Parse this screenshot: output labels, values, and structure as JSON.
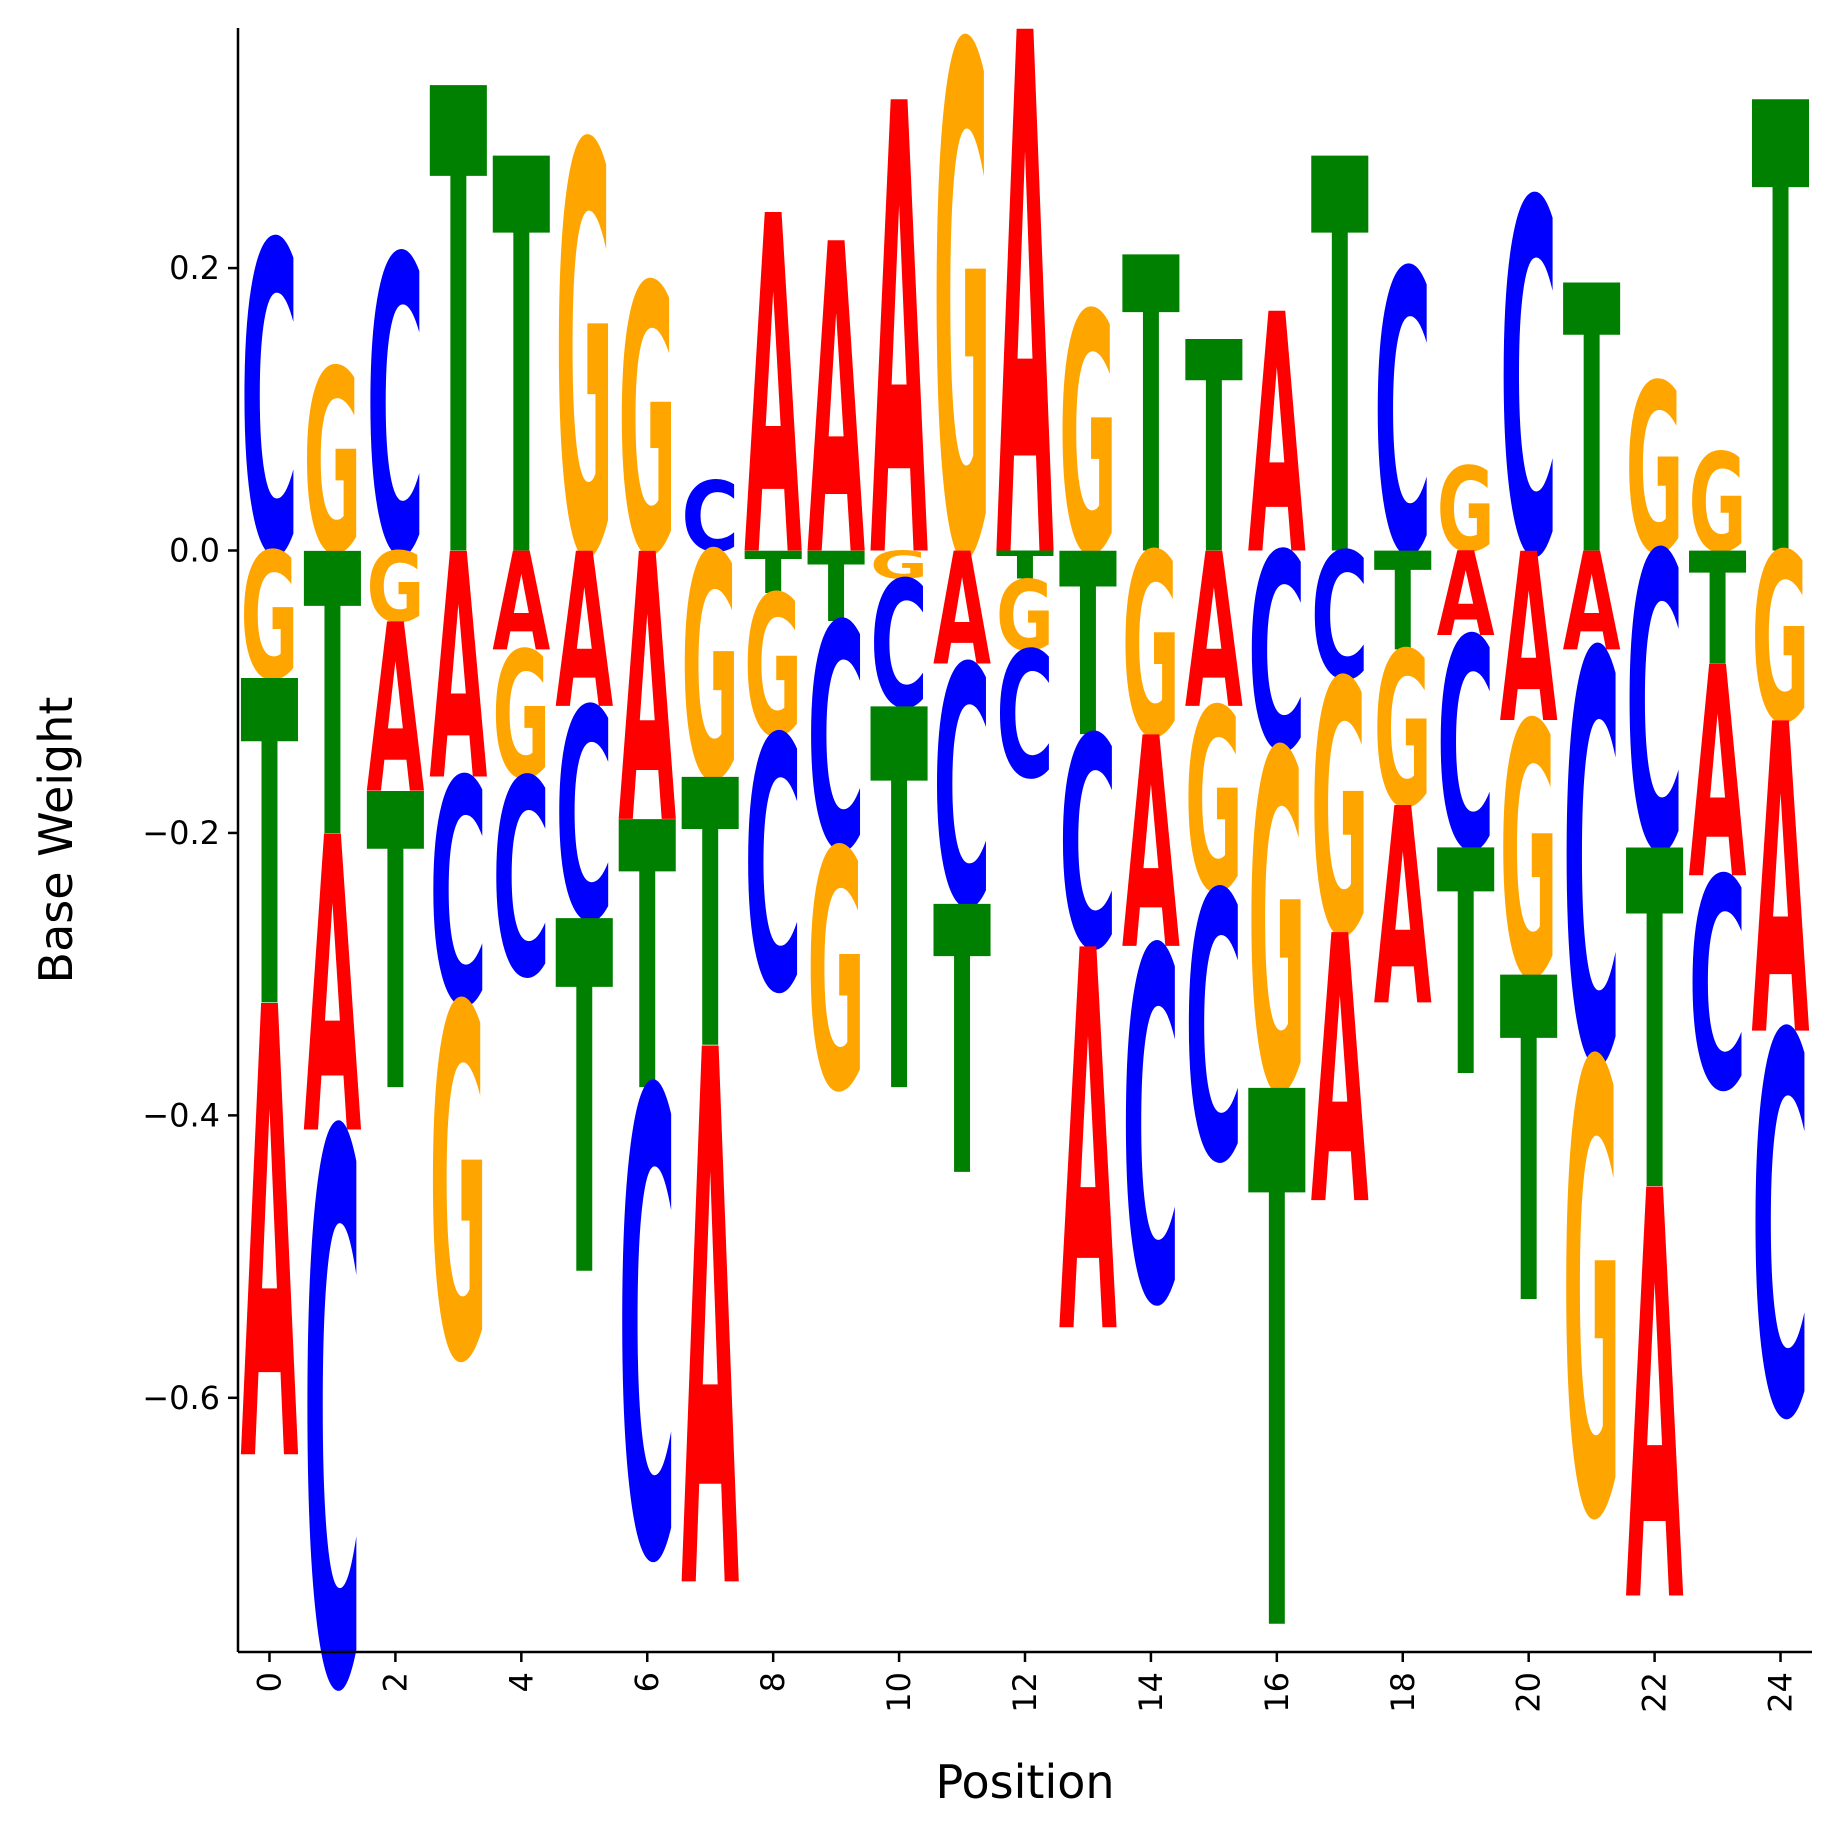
{
  "chart_data": {
    "type": "sequence-logo",
    "xlabel": "Position",
    "ylabel": "Base Weight",
    "xlim": [
      -0.5,
      24.5
    ],
    "ylim": [
      -0.78,
      0.37
    ],
    "x_ticks": [
      0,
      2,
      4,
      6,
      8,
      10,
      12,
      14,
      16,
      18,
      20,
      22,
      24
    ],
    "y_ticks": [
      -0.6,
      -0.4,
      -0.2,
      0.0,
      0.2
    ],
    "y_tick_labels": [
      "−0.6",
      "−0.4",
      "−0.2",
      "0.0",
      "0.2"
    ],
    "grid": false,
    "colors": {
      "A": "#ff0000",
      "C": "#0000ff",
      "G": "#ffa500",
      "T": "#008000"
    },
    "weights": [
      {
        "position": 0,
        "A": -0.32,
        "C": 0.22,
        "G": -0.09,
        "T": -0.23
      },
      {
        "position": 1,
        "A": -0.21,
        "C": -0.39,
        "G": 0.13,
        "T": -0.2
      },
      {
        "position": 2,
        "A": -0.12,
        "C": 0.21,
        "G": -0.05,
        "T": -0.21
      },
      {
        "position": 3,
        "A": -0.16,
        "C": -0.16,
        "G": -0.25,
        "T": 0.33
      },
      {
        "position": 4,
        "A": -0.07,
        "C": -0.14,
        "G": -0.09,
        "T": 0.28
      },
      {
        "position": 5,
        "A": -0.11,
        "C": -0.15,
        "G": 0.29,
        "T": -0.25
      },
      {
        "position": 6,
        "A": -0.19,
        "C": -0.33,
        "G": 0.19,
        "T": -0.19
      },
      {
        "position": 7,
        "A": -0.38,
        "C": 0.05,
        "G": -0.16,
        "T": -0.19
      },
      {
        "position": 8,
        "A": 0.24,
        "C": -0.18,
        "G": -0.1,
        "T": -0.03
      },
      {
        "position": 9,
        "A": 0.22,
        "C": -0.16,
        "G": -0.17,
        "T": -0.05
      },
      {
        "position": 10,
        "A": 0.32,
        "C": -0.09,
        "G": -0.02,
        "T": -0.27
      },
      {
        "position": 11,
        "A": -0.08,
        "C": -0.17,
        "G": 0.36,
        "T": -0.19
      },
      {
        "position": 12,
        "A": 0.37,
        "C": -0.09,
        "G": -0.05,
        "T": -0.02
      },
      {
        "position": 13,
        "A": -0.27,
        "C": -0.15,
        "G": 0.17,
        "T": -0.13
      },
      {
        "position": 14,
        "A": -0.15,
        "C": -0.25,
        "G": -0.13,
        "T": 0.21
      },
      {
        "position": 15,
        "A": -0.11,
        "C": -0.19,
        "G": -0.13,
        "T": 0.15
      },
      {
        "position": 16,
        "A": 0.17,
        "C": -0.14,
        "G": -0.24,
        "T": -0.38
      },
      {
        "position": 17,
        "A": -0.19,
        "C": -0.09,
        "G": -0.18,
        "T": 0.28
      },
      {
        "position": 18,
        "A": -0.14,
        "C": 0.2,
        "G": -0.11,
        "T": -0.07
      },
      {
        "position": 19,
        "A": -0.06,
        "C": -0.15,
        "G": 0.06,
        "T": -0.16
      },
      {
        "position": 20,
        "A": -0.12,
        "C": 0.25,
        "G": -0.18,
        "T": -0.23
      },
      {
        "position": 21,
        "A": -0.07,
        "C": -0.29,
        "G": -0.32,
        "T": 0.19
      },
      {
        "position": 22,
        "A": -0.29,
        "C": -0.21,
        "G": 0.12,
        "T": -0.24
      },
      {
        "position": 23,
        "A": -0.15,
        "C": -0.15,
        "G": 0.07,
        "T": -0.08
      },
      {
        "position": 24,
        "A": -0.22,
        "C": -0.27,
        "G": -0.12,
        "T": 0.32
      }
    ]
  }
}
